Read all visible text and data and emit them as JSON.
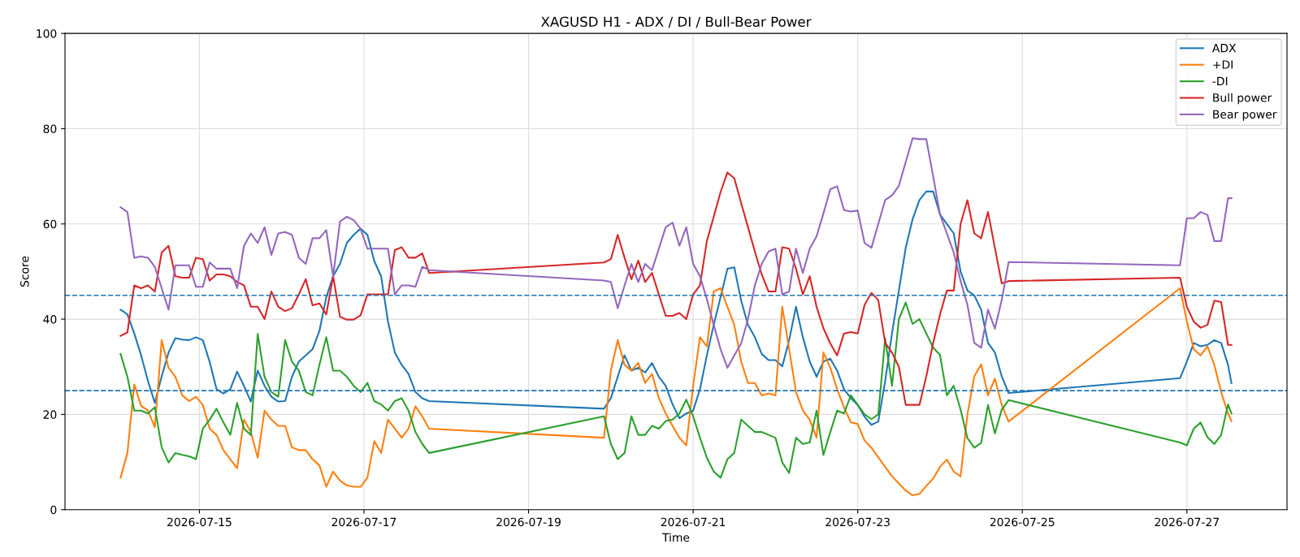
{
  "chart_data": {
    "type": "line",
    "title": "XAGUSD H1 - ADX / DI / Bull-Bear Power",
    "xlabel": "Time",
    "ylabel": "Score",
    "x": [
      "2026-07-14T01:00",
      "2026-07-14T03:00",
      "2026-07-14T05:00",
      "2026-07-14T07:00",
      "2026-07-14T09:00",
      "2026-07-14T11:00",
      "2026-07-14T13:00",
      "2026-07-14T15:00",
      "2026-07-14T17:00",
      "2026-07-14T19:00",
      "2026-07-14T21:00",
      "2026-07-14T23:00",
      "2026-07-15T01:00",
      "2026-07-15T03:00",
      "2026-07-15T05:00",
      "2026-07-15T07:00",
      "2026-07-15T09:00",
      "2026-07-15T11:00",
      "2026-07-15T13:00",
      "2026-07-15T15:00",
      "2026-07-15T17:00",
      "2026-07-15T19:00",
      "2026-07-15T21:00",
      "2026-07-15T23:00",
      "2026-07-16T01:00",
      "2026-07-16T03:00",
      "2026-07-16T05:00",
      "2026-07-16T07:00",
      "2026-07-16T09:00",
      "2026-07-16T11:00",
      "2026-07-16T13:00",
      "2026-07-16T15:00",
      "2026-07-16T17:00",
      "2026-07-16T19:00",
      "2026-07-16T21:00",
      "2026-07-16T23:00",
      "2026-07-17T01:00",
      "2026-07-17T03:00",
      "2026-07-17T05:00",
      "2026-07-17T07:00",
      "2026-07-17T09:00",
      "2026-07-17T11:00",
      "2026-07-17T13:00",
      "2026-07-17T15:00",
      "2026-07-17T17:00",
      "2026-07-17T19:00",
      "2026-07-19T22:00",
      "2026-07-20T00:00",
      "2026-07-20T02:00",
      "2026-07-20T04:00",
      "2026-07-20T06:00",
      "2026-07-20T08:00",
      "2026-07-20T10:00",
      "2026-07-20T12:00",
      "2026-07-20T14:00",
      "2026-07-20T16:00",
      "2026-07-20T18:00",
      "2026-07-20T20:00",
      "2026-07-20T22:00",
      "2026-07-21T00:00",
      "2026-07-21T02:00",
      "2026-07-21T04:00",
      "2026-07-21T06:00",
      "2026-07-21T08:00",
      "2026-07-21T10:00",
      "2026-07-21T12:00",
      "2026-07-21T14:00",
      "2026-07-21T16:00",
      "2026-07-21T18:00",
      "2026-07-21T20:00",
      "2026-07-21T22:00",
      "2026-07-22T00:00",
      "2026-07-22T02:00",
      "2026-07-22T04:00",
      "2026-07-22T06:00",
      "2026-07-22T08:00",
      "2026-07-22T10:00",
      "2026-07-22T12:00",
      "2026-07-22T14:00",
      "2026-07-22T16:00",
      "2026-07-22T18:00",
      "2026-07-22T20:00",
      "2026-07-22T22:00",
      "2026-07-23T00:00",
      "2026-07-23T02:00",
      "2026-07-23T04:00",
      "2026-07-23T06:00",
      "2026-07-23T08:00",
      "2026-07-23T10:00",
      "2026-07-23T12:00",
      "2026-07-23T14:00",
      "2026-07-23T16:00",
      "2026-07-23T18:00",
      "2026-07-23T20:00",
      "2026-07-23T22:00",
      "2026-07-24T00:00",
      "2026-07-24T02:00",
      "2026-07-24T04:00",
      "2026-07-24T06:00",
      "2026-07-24T08:00",
      "2026-07-24T10:00",
      "2026-07-24T12:00",
      "2026-07-24T14:00",
      "2026-07-24T16:00",
      "2026-07-24T18:00",
      "2026-07-24T20:00",
      "2026-07-26T22:00",
      "2026-07-27T00:00",
      "2026-07-27T02:00",
      "2026-07-27T04:00",
      "2026-07-27T06:00",
      "2026-07-27T08:00",
      "2026-07-27T10:00",
      "2026-07-27T12:00",
      "2026-07-27T13:00"
    ],
    "series": [
      {
        "name": "ADX",
        "color": "#1f77b4",
        "values": [
          42,
          41,
          37,
          32.4,
          27,
          22.4,
          28,
          33,
          36,
          35.7,
          35.6,
          36.2,
          35.6,
          31,
          25.3,
          24.4,
          25.3,
          29,
          26,
          22.7,
          29.2,
          26,
          23.7,
          22.7,
          22.8,
          27.9,
          31.1,
          32.4,
          33.7,
          37.5,
          44.6,
          49,
          51.6,
          56,
          57.7,
          59,
          57.7,
          52.2,
          49,
          39.5,
          33,
          30.4,
          28.5,
          24.7,
          23.4,
          22.8,
          21.2,
          23.4,
          27.9,
          32.4,
          29.2,
          29.8,
          28.8,
          30.8,
          27.9,
          26,
          22.1,
          19.2,
          20.2,
          20.8,
          25.3,
          32.4,
          38.8,
          44.6,
          50.6,
          50.9,
          43.9,
          38.8,
          36.2,
          32.7,
          31.4,
          31.4,
          30.1,
          35.6,
          42.6,
          36.2,
          31.1,
          27.9,
          31.1,
          31.7,
          29.2,
          25.3,
          23.4,
          22,
          19.5,
          17.8,
          18.5,
          27,
          37,
          46,
          55,
          61,
          65,
          66.8,
          66.8,
          62,
          60,
          58,
          50,
          46,
          45,
          42,
          35,
          33,
          28,
          24.5,
          27.6,
          31.1,
          35,
          34.3,
          34.6,
          35.6,
          35,
          30.4,
          26.6
        ]
      },
      {
        "name": "+DI",
        "color": "#ff7f0e",
        "values": [
          6.7,
          11.9,
          26.3,
          21.8,
          20.8,
          17.3,
          35.6,
          29.8,
          27.9,
          24,
          22.8,
          23.7,
          22,
          17,
          15.7,
          12.5,
          10.6,
          8.7,
          18.9,
          16.3,
          10.9,
          20.8,
          18.9,
          17.6,
          17.6,
          13.1,
          12.5,
          12.5,
          10.6,
          9.3,
          4.8,
          8,
          6.1,
          5.1,
          4.8,
          4.8,
          6.7,
          14.4,
          11.9,
          18.9,
          17,
          15.1,
          17,
          21.7,
          19.6,
          17,
          15.1,
          29.2,
          35.6,
          30.4,
          29.2,
          30.8,
          26.6,
          28.5,
          23.4,
          20.2,
          17.6,
          15.1,
          13.5,
          26,
          36.2,
          34.3,
          45.8,
          46.5,
          42.6,
          38.8,
          31.1,
          26.6,
          26.6,
          24,
          24.4,
          24,
          42.6,
          33.7,
          24.7,
          20.8,
          18.9,
          15.1,
          33,
          29.8,
          25.3,
          21.5,
          18.3,
          18,
          14.5,
          13,
          11,
          9,
          7,
          5.5,
          4,
          3,
          3.3,
          5,
          6.5,
          9,
          10.5,
          8,
          7,
          20,
          28,
          30.5,
          24,
          27.5,
          22,
          18.5,
          46.5,
          39.5,
          33.7,
          32.4,
          34.3,
          30.4,
          24.7,
          20.2,
          18.6
        ]
      },
      {
        "name": "-DI",
        "color": "#2ca02c",
        "values": [
          32.7,
          27.9,
          20.8,
          20.8,
          20.2,
          21.5,
          13.1,
          9.9,
          11.9,
          11.5,
          11.2,
          10.6,
          17,
          18.9,
          21.2,
          18.3,
          15.7,
          22.4,
          17,
          15.7,
          36.9,
          27.9,
          24.7,
          23.7,
          35.6,
          31.1,
          29.2,
          24.7,
          24,
          30.4,
          36.2,
          29.2,
          29.2,
          27.9,
          26,
          24.7,
          26.6,
          22.8,
          22.1,
          20.8,
          22.8,
          23.4,
          20.8,
          16.3,
          13.8,
          11.9,
          19.6,
          13.8,
          10.6,
          11.9,
          19.6,
          15.7,
          15.7,
          17.6,
          17,
          18.6,
          18.9,
          20.2,
          23.1,
          19.6,
          15.1,
          10.9,
          8,
          6.7,
          10.6,
          11.9,
          18.9,
          17.6,
          16.3,
          16.3,
          15.7,
          15.1,
          9.9,
          7.7,
          15.1,
          13.8,
          14.1,
          20.8,
          11.5,
          16.3,
          20.8,
          20.2,
          24,
          22,
          20,
          19,
          20,
          36,
          26,
          40,
          43.5,
          39,
          40,
          37,
          34,
          32.5,
          24,
          26,
          21,
          15,
          13,
          14,
          22,
          16,
          21,
          23,
          14.1,
          13.5,
          17,
          18.3,
          15.2,
          13.8,
          15.7,
          22.1,
          20.2
        ]
      },
      {
        "name": "Bull power",
        "color": "#d62728",
        "values": [
          36.5,
          37.2,
          47.1,
          46.5,
          47.1,
          45.8,
          54,
          55.4,
          49,
          48.7,
          48.7,
          52.9,
          52.6,
          48.1,
          49.4,
          49.4,
          49,
          47.8,
          47.1,
          42.6,
          42.6,
          40,
          45.8,
          42.6,
          41.7,
          42.3,
          45.2,
          48.4,
          42.9,
          43.3,
          41,
          49,
          40.5,
          39.9,
          39.9,
          40.8,
          45.2,
          45.2,
          45.2,
          45.2,
          54.5,
          55.1,
          52.9,
          52.9,
          53.8,
          49.7,
          51.9,
          52.6,
          57.7,
          52.9,
          48.4,
          52.3,
          47.8,
          49.7,
          45.2,
          40.7,
          40.7,
          41.3,
          40,
          45.2,
          47.1,
          56.4,
          61.5,
          66.7,
          70.8,
          69.6,
          64.4,
          59.3,
          54.2,
          49.4,
          45.8,
          45.8,
          55.1,
          54.8,
          50.6,
          45.2,
          49,
          42.6,
          38.1,
          34.9,
          32.4,
          37,
          37.3,
          37,
          43,
          45.5,
          44,
          35,
          33,
          30,
          22,
          22,
          22,
          28,
          35,
          41,
          46,
          46,
          60,
          65,
          58,
          57,
          62.5,
          55,
          47.5,
          48,
          48.7,
          42.6,
          39.5,
          38.2,
          38.8,
          43.9,
          43.6,
          34.6,
          34.6
        ]
      },
      {
        "name": "Bear power",
        "color": "#9467bd",
        "values": [
          63.5,
          62.5,
          52.9,
          53.2,
          52.9,
          51,
          46.5,
          42,
          51.3,
          51.3,
          51.3,
          46.8,
          46.8,
          51.9,
          50.6,
          50.6,
          50.6,
          46.5,
          55.4,
          58,
          56,
          59.3,
          53.5,
          58,
          58.3,
          57.7,
          52.9,
          51.6,
          57,
          57,
          58.7,
          49,
          60.5,
          61.5,
          60.8,
          59,
          54.8,
          54.8,
          54.8,
          54.8,
          45.2,
          47.1,
          47.1,
          46.8,
          51,
          50.3,
          48.1,
          47.8,
          42.3,
          47.1,
          51.6,
          47.8,
          51.6,
          50.3,
          54.8,
          59.3,
          60.3,
          55.4,
          59.3,
          51.6,
          49,
          44.2,
          38.8,
          33.7,
          29.8,
          32.4,
          34.9,
          40,
          47.1,
          51.6,
          54.2,
          54.8,
          45.2,
          45.8,
          54.8,
          49.7,
          54.8,
          57.4,
          62.2,
          67.3,
          67.9,
          62.9,
          62.6,
          62.8,
          56,
          55,
          60,
          65,
          66,
          68,
          73,
          78,
          77.8,
          77.8,
          70,
          62,
          58,
          54,
          48,
          43,
          35,
          34,
          42,
          38,
          44,
          52,
          51.3,
          61.2,
          61.2,
          62.5,
          61.9,
          56.4,
          56.4,
          65.4,
          65.4
        ]
      }
    ],
    "xlim": [
      "2026-07-13T08:48",
      "2026-07-28T05:12"
    ],
    "xticks": [
      "2026-07-15",
      "2026-07-17",
      "2026-07-19",
      "2026-07-21",
      "2026-07-23",
      "2026-07-25",
      "2026-07-27"
    ],
    "ylim": [
      0,
      100
    ],
    "yticks": [
      0,
      20,
      40,
      60,
      80,
      100
    ],
    "ref_lines": [
      {
        "axis": "y",
        "value": 45,
        "color": "#1f77b4",
        "line_style": "dashed"
      },
      {
        "axis": "y",
        "value": 25,
        "color": "#1f77b4",
        "line_style": "dashed"
      }
    ],
    "grid": true,
    "legend": "top right",
    "line_style": "solid",
    "marker": "none"
  }
}
